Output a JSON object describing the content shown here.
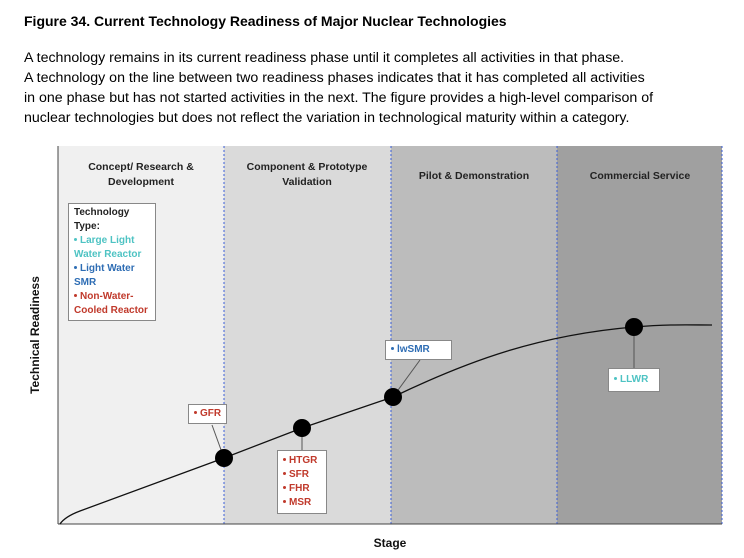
{
  "header": {
    "title": "Figure 34. Current Technology Readiness of Major Nuclear Technologies"
  },
  "intro": {
    "lines": [
      "A technology remains in its current readiness phase until it completes all activities in that phase.",
      "A technology on the line between two readiness phases indicates that it has completed all activities",
      "in one phase but has not started activities in the next. The figure provides a high-level comparison of",
      "nuclear technologies but does not reflect the variation in technological maturity within a category."
    ]
  },
  "figure": {
    "phases": [
      "Concept/ Research & Development",
      "Component & Prototype Validation",
      "Pilot & Demonstration",
      "Commercial Service"
    ],
    "legend": {
      "title": "Technology Type:",
      "items": [
        "Large Light Water Reactor",
        "Light Water SMR",
        "Non-Water-Cooled Reactor"
      ]
    },
    "labels": {
      "gfr": [
        "GFR"
      ],
      "lwsmr": [
        "lwSMR"
      ],
      "group": [
        "HTGR",
        "SFR",
        "FHR",
        "MSR"
      ],
      "llwr": [
        "LLWR"
      ]
    },
    "y_axis_label": "Technical Readiness",
    "x_axis_label": "Stage"
  }
}
